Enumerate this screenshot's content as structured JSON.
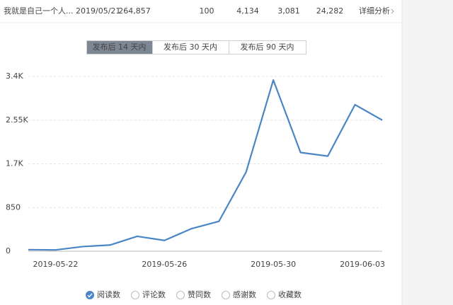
{
  "row": {
    "title": "我就是自己一个人...",
    "date": "2019/05/21",
    "stats": [
      "264,857",
      "100",
      "4,134",
      "3,081",
      "24,282"
    ],
    "link": "详细分析"
  },
  "tabs": [
    {
      "label": "发布后 14 天内",
      "selected": true
    },
    {
      "label": "发布后 30 天内",
      "selected": false
    },
    {
      "label": "发布后 90 天内",
      "selected": false
    }
  ],
  "chart_data": {
    "type": "line",
    "categories": [
      null,
      "2019-05-22",
      null,
      null,
      null,
      "2019-05-26",
      null,
      null,
      null,
      "2019-05-30",
      null,
      null,
      null,
      "2019-06-03"
    ],
    "series": [
      {
        "name": "阅读数",
        "color": "#4a86c5",
        "values": [
          30,
          25,
          90,
          120,
          290,
          210,
          440,
          580,
          1540,
          3330,
          1920,
          1850,
          2850,
          2550
        ]
      }
    ],
    "ylim": [
      0,
      3400
    ],
    "yticks": [
      0,
      850,
      {
        "value": 1700,
        "label": "1.7K"
      },
      {
        "value": 2550,
        "label": "2.55K"
      },
      {
        "value": 3400,
        "label": "3.4K"
      }
    ],
    "grid": true,
    "legend_options": [
      {
        "label": "评论数",
        "checked": false
      },
      {
        "label": "赞同数",
        "checked": false
      },
      {
        "label": "感谢数",
        "checked": false
      },
      {
        "label": "收藏数",
        "checked": false
      }
    ]
  }
}
